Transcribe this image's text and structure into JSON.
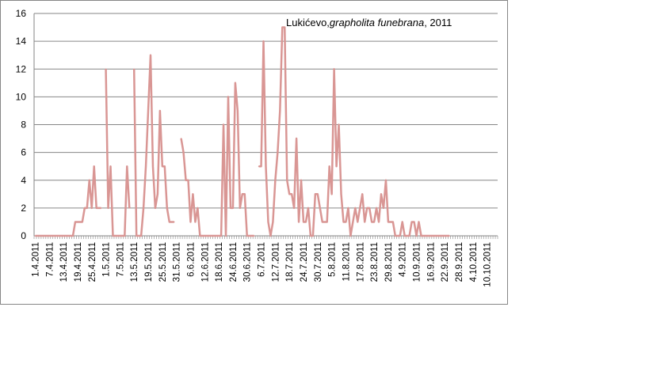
{
  "chart_data": {
    "type": "line",
    "title_parts": {
      "place": "Lukićevo,",
      "species": "grapholita funebrana",
      "year": ", 2011"
    },
    "xlabel": "",
    "ylabel": "",
    "ylim": [
      0,
      16
    ],
    "yticks": [
      0,
      2,
      4,
      6,
      8,
      10,
      12,
      14,
      16
    ],
    "grid": true,
    "legend": "none",
    "line_color": "#D99694",
    "x_tick_labels": [
      "1.4.2011",
      "7.4.2011",
      "13.4.2011",
      "19.4.2011",
      "25.4.2011",
      "1.5.2011",
      "7.5.2011",
      "13.5.2011",
      "19.5.2011",
      "25.5.2011",
      "31.5.2011",
      "6.6.2011",
      "12.6.2011",
      "18.6.2011",
      "24.6.2011",
      "30.6.2011",
      "6.7.2011",
      "12.7.2011",
      "18.7.2011",
      "24.7.2011",
      "30.7.2011",
      "5.8.2011",
      "11.8.2011",
      "17.8.2011",
      "23.8.2011",
      "29.8.2011",
      "4.9.2011",
      "10.9.2011",
      "16.9.2011",
      "22.9.2011",
      "28.9.2011",
      "4.10.2011",
      "10.10.2011"
    ],
    "x_start": "1.4.2011",
    "x_end": "10.10.2011",
    "series": [
      {
        "values": [
          0,
          0,
          0,
          0,
          0,
          0,
          0,
          0,
          0,
          0,
          0,
          0,
          0,
          0,
          0,
          0,
          0,
          1,
          1,
          1,
          1,
          2,
          2,
          4,
          2,
          5,
          2,
          2,
          2,
          null,
          12,
          2,
          5,
          0,
          0,
          0,
          0,
          0,
          0,
          5,
          2,
          null,
          12,
          0,
          0,
          0,
          2,
          5,
          9,
          13,
          5,
          2,
          3,
          9,
          5,
          5,
          2,
          1,
          1,
          1,
          null,
          null,
          7,
          6,
          4,
          4,
          1,
          3,
          1,
          2,
          0,
          0,
          0,
          0,
          0,
          0,
          0,
          0,
          0,
          0,
          8,
          0,
          10,
          2,
          2,
          11,
          9,
          2,
          3,
          3,
          0,
          0,
          0,
          0,
          null,
          5,
          5,
          14,
          5,
          1,
          0,
          1,
          4,
          6,
          9,
          15,
          15,
          4,
          3,
          3,
          2,
          7,
          1,
          4,
          1,
          1,
          2,
          0,
          0,
          3,
          3,
          2,
          1,
          1,
          1,
          5,
          3,
          12,
          5,
          8,
          3,
          1,
          1,
          2,
          0,
          1,
          2,
          1,
          2,
          3,
          1,
          2,
          2,
          1,
          1,
          2,
          1,
          3,
          2,
          4,
          1,
          1,
          1,
          0,
          0,
          0,
          1,
          0,
          0,
          0,
          1,
          1,
          0,
          1,
          0,
          0,
          0,
          0,
          0,
          0,
          0,
          0,
          0,
          0,
          0,
          0,
          0,
          null,
          null,
          null,
          null,
          null,
          null,
          null,
          null,
          null,
          null,
          null,
          null,
          null,
          null,
          null,
          null,
          null,
          null,
          null,
          null
        ]
      }
    ]
  }
}
